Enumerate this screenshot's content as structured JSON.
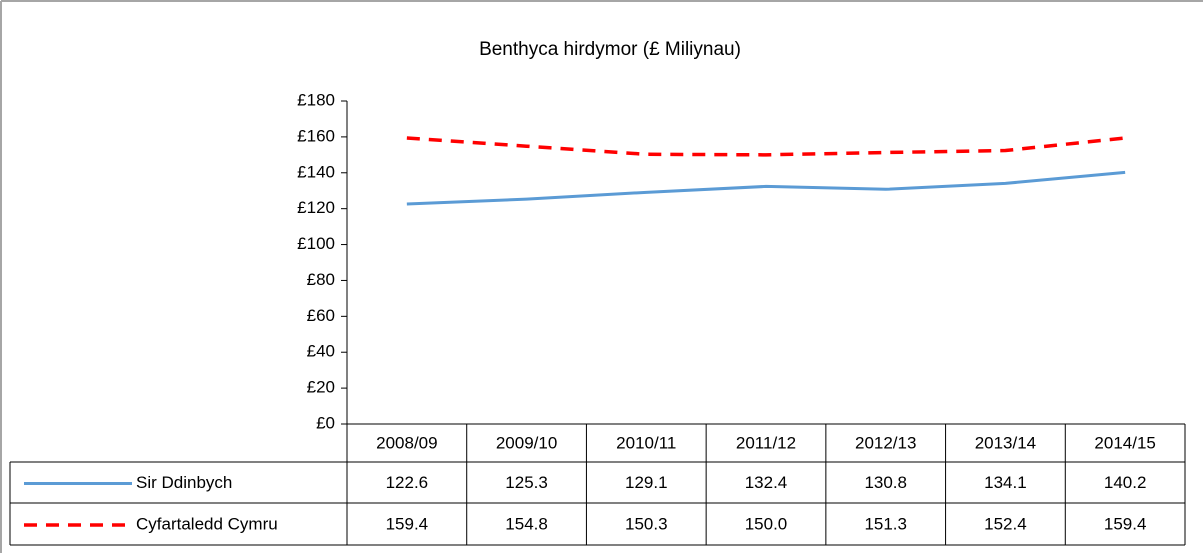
{
  "chart_data": {
    "type": "line",
    "title": "Benthyca hirdymor (£ Miliynau)",
    "categories": [
      "2008/09",
      "2009/10",
      "2010/11",
      "2011/12",
      "2012/13",
      "2013/14",
      "2014/15"
    ],
    "series": [
      {
        "name": "Sir Ddinbych",
        "color": "#5b9bd5",
        "dashed": false,
        "values": [
          122.6,
          125.3,
          129.1,
          132.4,
          130.8,
          134.1,
          140.2
        ],
        "value_labels": [
          "122.6",
          "125.3",
          "129.1",
          "132.4",
          "130.8",
          "134.1",
          "140.2"
        ]
      },
      {
        "name": "Cyfartaledd Cymru",
        "color": "#ff0000",
        "dashed": true,
        "values": [
          159.4,
          154.8,
          150.3,
          150.0,
          151.3,
          152.4,
          159.4
        ],
        "value_labels": [
          "159.4",
          "154.8",
          "150.3",
          "150.0",
          "151.3",
          "152.4",
          "159.4"
        ]
      }
    ],
    "ylim": [
      0,
      180
    ],
    "yticks": [
      {
        "value": 0,
        "label": "£0"
      },
      {
        "value": 20,
        "label": "£20"
      },
      {
        "value": 40,
        "label": "£40"
      },
      {
        "value": 60,
        "label": "£60"
      },
      {
        "value": 80,
        "label": "£80"
      },
      {
        "value": 100,
        "label": "£100"
      },
      {
        "value": 120,
        "label": "£120"
      },
      {
        "value": 140,
        "label": "£140"
      },
      {
        "value": 160,
        "label": "£160"
      },
      {
        "value": 180,
        "label": "£180"
      }
    ],
    "grid": false
  }
}
